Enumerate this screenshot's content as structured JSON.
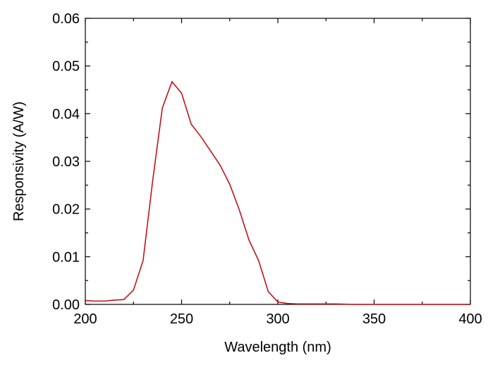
{
  "chart_data": {
    "type": "line",
    "xlabel": "Wavelength (nm)",
    "ylabel": "Responsivity (A/W)",
    "xlim": [
      200,
      400
    ],
    "ylim": [
      0,
      0.06
    ],
    "x_ticks": [
      "200",
      "250",
      "300",
      "350",
      "400"
    ],
    "y_ticks": [
      "0.00",
      "0.01",
      "0.02",
      "0.03",
      "0.04",
      "0.05",
      "0.06"
    ],
    "x_tick_values": [
      200,
      250,
      300,
      350,
      400
    ],
    "y_tick_values": [
      0,
      0.01,
      0.02,
      0.03,
      0.04,
      0.05,
      0.06
    ],
    "x_minor_tick_values": [
      225,
      275,
      325,
      375
    ],
    "y_minor_tick_values": [
      0.005,
      0.015,
      0.025,
      0.035,
      0.045,
      0.055
    ],
    "grid": false,
    "line_color": "#c0141c",
    "series": [
      {
        "x": [
          200,
          205,
          210,
          215,
          220,
          225,
          230,
          235,
          240,
          245,
          250,
          255,
          260,
          265,
          270,
          275,
          280,
          285,
          290,
          295,
          300,
          305,
          310,
          320,
          330,
          340,
          350,
          360,
          370,
          380,
          390,
          400
        ],
        "y": [
          0.0008,
          0.0007,
          0.0007,
          0.0009,
          0.001,
          0.003,
          0.0092,
          0.026,
          0.0412,
          0.0467,
          0.0443,
          0.0378,
          0.0352,
          0.0322,
          0.0292,
          0.0252,
          0.0198,
          0.0135,
          0.0092,
          0.0027,
          0.0005,
          0.0002,
          0.0001,
          0.0001,
          0.0001,
          0.0,
          0.0,
          0.0,
          0.0,
          0.0,
          0.0,
          0.0
        ]
      }
    ]
  }
}
